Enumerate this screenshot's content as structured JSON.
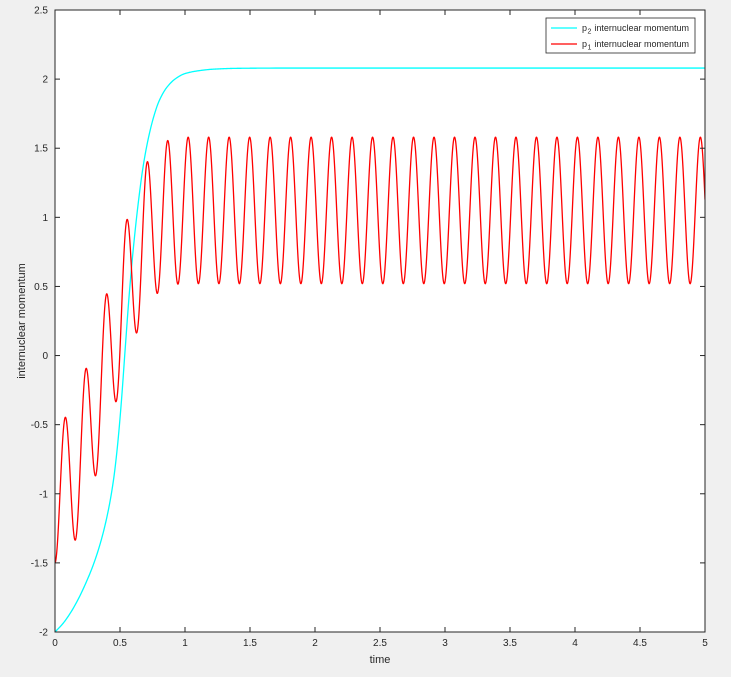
{
  "colors": {
    "figure_background": "#f0f0f0",
    "plot_background": "#ffffff",
    "axis": "#262626",
    "series_p2": "#00ffff",
    "series_p1": "#ff0000",
    "legend_background": "#ffffff",
    "legend_border": "#262626"
  },
  "chart_data": {
    "type": "line",
    "title": "",
    "xlabel": "time",
    "ylabel": "internuclear momentum",
    "xlim": [
      0,
      5
    ],
    "ylim": [
      -2,
      2.5
    ],
    "grid": false,
    "x_ticks": [
      "0",
      "0.5",
      "1",
      "1.5",
      "2",
      "2.5",
      "3",
      "3.5",
      "4",
      "4.5",
      "5"
    ],
    "x_tick_values": [
      0,
      0.5,
      1,
      1.5,
      2,
      2.5,
      3,
      3.5,
      4,
      4.5,
      5
    ],
    "y_ticks": [
      "-2",
      "-1.5",
      "-1",
      "-0.5",
      "0",
      "0.5",
      "1",
      "1.5",
      "2",
      "2.5"
    ],
    "y_tick_values": [
      -2,
      -1.5,
      -1,
      -0.5,
      0,
      0.5,
      1,
      1.5,
      2,
      2.5
    ],
    "legend": {
      "position": "northeast",
      "entries": [
        {
          "series": "p2",
          "base": "p",
          "sub": "2",
          "rest": "internuclear momentum",
          "color": "#00ffff"
        },
        {
          "series": "p1",
          "base": "p",
          "sub": "1",
          "rest": "internuclear momentum",
          "color": "#ff0000"
        }
      ]
    },
    "series": [
      {
        "id": "p2",
        "name": "p2 internuclear momentum",
        "color": "#00ffff",
        "model": {
          "type": "pchip_anchors",
          "anchors": [
            [
              0.0,
              -2.0
            ],
            [
              0.06,
              -1.94
            ],
            [
              0.12,
              -1.86
            ],
            [
              0.18,
              -1.76
            ],
            [
              0.24,
              -1.64
            ],
            [
              0.3,
              -1.5
            ],
            [
              0.36,
              -1.32
            ],
            [
              0.41,
              -1.12
            ],
            [
              0.45,
              -0.9
            ],
            [
              0.48,
              -0.66
            ],
            [
              0.51,
              -0.34
            ],
            [
              0.54,
              0.05
            ],
            [
              0.57,
              0.43
            ],
            [
              0.6,
              0.75
            ],
            [
              0.64,
              1.1
            ],
            [
              0.68,
              1.38
            ],
            [
              0.72,
              1.58
            ],
            [
              0.76,
              1.73
            ],
            [
              0.8,
              1.84
            ],
            [
              0.86,
              1.94
            ],
            [
              0.93,
              2.005
            ],
            [
              1.0,
              2.04
            ],
            [
              1.1,
              2.06
            ],
            [
              1.22,
              2.072
            ],
            [
              1.4,
              2.078
            ],
            [
              1.8,
              2.08
            ],
            [
              5.0,
              2.08
            ]
          ]
        }
      },
      {
        "id": "p1",
        "name": "p1 internuclear momentum",
        "color": "#ff0000",
        "model": {
          "type": "modulated_cosine",
          "period": 0.1576,
          "phase_rad": 3.14159265358979,
          "center_anchors": [
            [
              0.0,
              -1.0
            ],
            [
              0.08,
              -0.95
            ],
            [
              0.16,
              -0.82
            ],
            [
              0.24,
              -0.6
            ],
            [
              0.32,
              -0.33
            ],
            [
              0.4,
              -0.06
            ],
            [
              0.48,
              0.22
            ],
            [
              0.56,
              0.48
            ],
            [
              0.64,
              0.72
            ],
            [
              0.72,
              0.89
            ],
            [
              0.8,
              0.99
            ],
            [
              0.88,
              1.03
            ],
            [
              0.96,
              1.048
            ],
            [
              1.05,
              1.05
            ],
            [
              5.0,
              1.05
            ]
          ],
          "amplitude_anchors": [
            [
              0.0,
              0.5
            ],
            [
              0.4,
              0.52
            ],
            [
              0.8,
              0.53
            ],
            [
              5.0,
              0.53
            ]
          ]
        }
      }
    ],
    "notable_values": {
      "p2_start": -2.0,
      "p2_plateau": 2.08,
      "p1_start": -1.5,
      "p1_steady_max": 1.58,
      "p1_steady_min": 0.52,
      "p1_end": 1.13
    }
  }
}
